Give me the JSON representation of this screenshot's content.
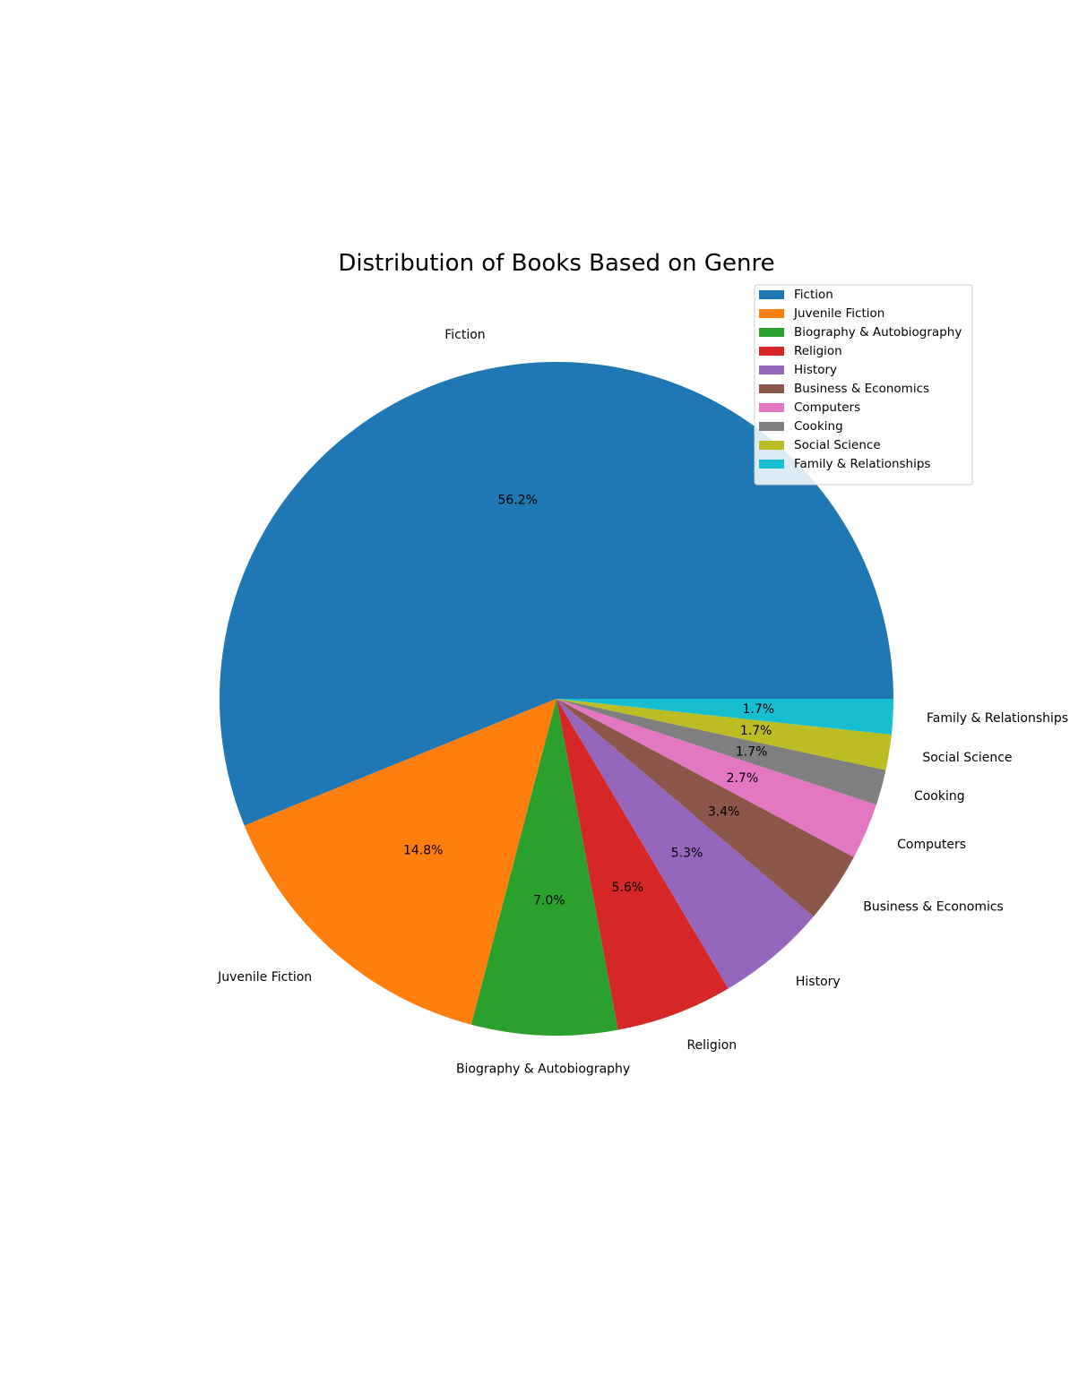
{
  "chart_data": {
    "type": "pie",
    "title": "Distribution of Books Based on Genre",
    "categories": [
      "Fiction",
      "Juvenile Fiction",
      "Biography & Autobiography",
      "Religion",
      "History",
      "Business & Economics",
      "Computers",
      "Cooking",
      "Social Science",
      "Family & Relationships"
    ],
    "values": [
      56.2,
      14.8,
      7.0,
      5.6,
      5.3,
      3.4,
      2.7,
      1.7,
      1.7,
      1.7
    ],
    "value_labels": [
      "56.2%",
      "14.8%",
      "7.0%",
      "5.6%",
      "5.3%",
      "3.4%",
      "2.7%",
      "1.7%",
      "1.7%",
      "1.7%"
    ],
    "colors": [
      "#1f77b4",
      "#ff7f0e",
      "#2ca02c",
      "#d62728",
      "#9467bd",
      "#8c564b",
      "#e377c2",
      "#7f7f7f",
      "#bcbd22",
      "#17becf"
    ],
    "start_angle_deg": 0,
    "direction": "counterclockwise",
    "legend": {
      "position": "top-right",
      "entries": [
        "Fiction",
        "Juvenile Fiction",
        "Biography & Autobiography",
        "Religion",
        "History",
        "Business & Economics",
        "Computers",
        "Cooking",
        "Social Science",
        "Family & Relationships"
      ]
    }
  }
}
